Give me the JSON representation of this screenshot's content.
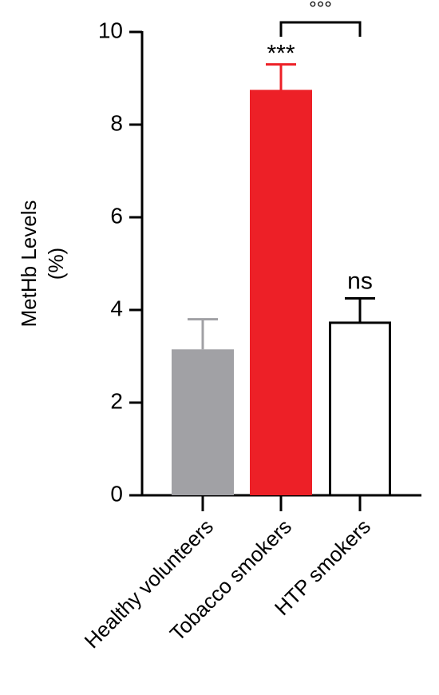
{
  "chart_data": {
    "type": "bar",
    "ylabel": [
      "MetHb Levels",
      "(%)"
    ],
    "categories": [
      "Healthy volunteers",
      "Tobacco smokers",
      "HTP smokers"
    ],
    "values": [
      3.15,
      8.75,
      3.75
    ],
    "errors": [
      0.65,
      0.55,
      0.5
    ],
    "colors": [
      "#a1a1a5",
      "#ed2027",
      "#ffffff"
    ],
    "significance": [
      null,
      "***",
      "ns"
    ],
    "comparison": "°°°",
    "ylim": [
      0,
      10
    ],
    "yticks": [
      0,
      2,
      4,
      6,
      8,
      10
    ]
  }
}
